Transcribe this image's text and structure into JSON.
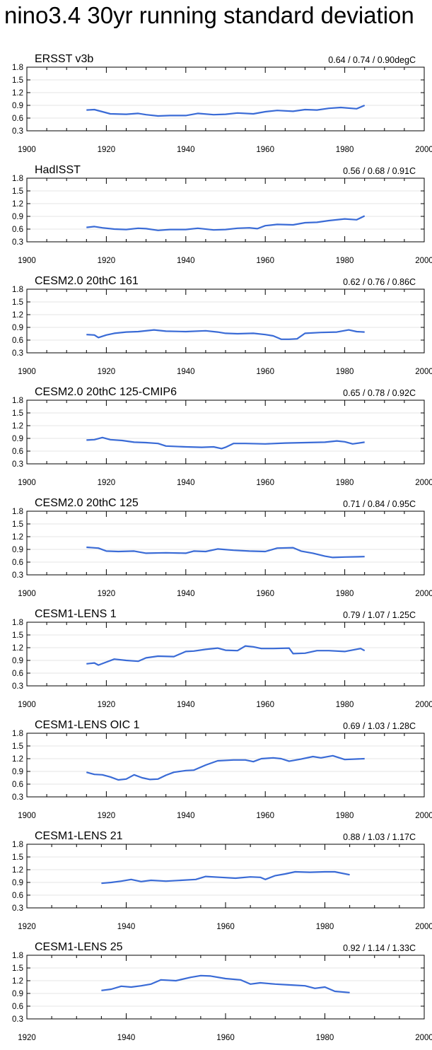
{
  "title": "nino3.4 30yr running standard deviation",
  "colors": {
    "series": "#3a6bd6",
    "grid": "#dcdcdc",
    "axis": "#000000"
  },
  "chart_data": [
    {
      "type": "line",
      "title": "ERSST v3b",
      "range_label": "0.64 / 0.74 / 0.90degC",
      "xlim": [
        1900,
        2000
      ],
      "xticks": [
        1900,
        1920,
        1940,
        1960,
        1980,
        2000
      ],
      "ylim": [
        0.3,
        1.8
      ],
      "yticks": [
        "0.3",
        "0.6",
        "0.9",
        "1.2",
        "1.5",
        "1.8"
      ],
      "x": [
        1915,
        1917,
        1919,
        1921,
        1925,
        1928,
        1930,
        1933,
        1936,
        1940,
        1943,
        1947,
        1950,
        1953,
        1957,
        1960,
        1963,
        1967,
        1970,
        1973,
        1976,
        1979,
        1983,
        1985
      ],
      "y": [
        0.79,
        0.8,
        0.75,
        0.7,
        0.69,
        0.71,
        0.68,
        0.65,
        0.66,
        0.66,
        0.71,
        0.68,
        0.69,
        0.72,
        0.7,
        0.75,
        0.78,
        0.76,
        0.8,
        0.79,
        0.83,
        0.85,
        0.82,
        0.9
      ]
    },
    {
      "type": "line",
      "title": "HadISST",
      "range_label": "0.56 / 0.68 / 0.91C",
      "xlim": [
        1900,
        2000
      ],
      "xticks": [
        1900,
        1920,
        1940,
        1960,
        1980,
        2000
      ],
      "ylim": [
        0.3,
        1.8
      ],
      "yticks": [
        "0.3",
        "0.6",
        "0.9",
        "1.2",
        "1.5",
        "1.8"
      ],
      "x": [
        1915,
        1917,
        1919,
        1922,
        1925,
        1928,
        1930,
        1933,
        1936,
        1940,
        1943,
        1947,
        1950,
        1953,
        1956,
        1958,
        1960,
        1963,
        1967,
        1970,
        1973,
        1976,
        1980,
        1983,
        1985
      ],
      "y": [
        0.64,
        0.66,
        0.63,
        0.6,
        0.59,
        0.62,
        0.61,
        0.57,
        0.59,
        0.59,
        0.62,
        0.58,
        0.59,
        0.62,
        0.63,
        0.61,
        0.68,
        0.71,
        0.7,
        0.75,
        0.76,
        0.8,
        0.84,
        0.82,
        0.91
      ]
    },
    {
      "type": "line",
      "title": "CESM2.0 20thC 161",
      "range_label": "0.62 / 0.76 / 0.86C",
      "xlim": [
        1900,
        2000
      ],
      "xticks": [
        1900,
        1920,
        1940,
        1960,
        1980,
        2000
      ],
      "ylim": [
        0.3,
        1.8
      ],
      "yticks": [
        "0.3",
        "0.6",
        "0.9",
        "1.2",
        "1.5",
        "1.8"
      ],
      "x": [
        1915,
        1917,
        1918,
        1920,
        1922,
        1925,
        1928,
        1932,
        1935,
        1940,
        1945,
        1948,
        1950,
        1953,
        1957,
        1960,
        1962,
        1964,
        1966,
        1968,
        1970,
        1974,
        1978,
        1981,
        1983,
        1985
      ],
      "y": [
        0.73,
        0.72,
        0.66,
        0.72,
        0.76,
        0.79,
        0.8,
        0.84,
        0.81,
        0.8,
        0.82,
        0.79,
        0.76,
        0.75,
        0.76,
        0.73,
        0.7,
        0.62,
        0.62,
        0.63,
        0.76,
        0.78,
        0.79,
        0.84,
        0.8,
        0.79
      ]
    },
    {
      "type": "line",
      "title": "CESM2.0 20thC 125-CMIP6",
      "range_label": "0.65 / 0.78 / 0.92C",
      "xlim": [
        1900,
        2000
      ],
      "xticks": [
        1900,
        1920,
        1940,
        1960,
        1980,
        2000
      ],
      "ylim": [
        0.3,
        1.8
      ],
      "yticks": [
        "0.3",
        "0.6",
        "0.9",
        "1.2",
        "1.5",
        "1.8"
      ],
      "x": [
        1915,
        1917,
        1919,
        1921,
        1924,
        1927,
        1930,
        1933,
        1935,
        1940,
        1944,
        1947,
        1949,
        1950,
        1952,
        1955,
        1960,
        1965,
        1970,
        1975,
        1978,
        1980,
        1982,
        1985
      ],
      "y": [
        0.86,
        0.87,
        0.92,
        0.87,
        0.85,
        0.81,
        0.8,
        0.78,
        0.72,
        0.7,
        0.69,
        0.7,
        0.66,
        0.69,
        0.78,
        0.78,
        0.77,
        0.79,
        0.8,
        0.81,
        0.84,
        0.82,
        0.77,
        0.81
      ]
    },
    {
      "type": "line",
      "title": "CESM2.0 20thC 125",
      "range_label": "0.71 / 0.84 / 0.95C",
      "xlim": [
        1900,
        2000
      ],
      "xticks": [
        1900,
        1920,
        1940,
        1960,
        1980,
        2000
      ],
      "ylim": [
        0.3,
        1.8
      ],
      "yticks": [
        "0.3",
        "0.6",
        "0.9",
        "1.2",
        "1.5",
        "1.8"
      ],
      "x": [
        1915,
        1918,
        1920,
        1923,
        1927,
        1930,
        1935,
        1940,
        1942,
        1945,
        1948,
        1952,
        1956,
        1960,
        1963,
        1967,
        1969,
        1972,
        1975,
        1977,
        1980,
        1985
      ],
      "y": [
        0.95,
        0.93,
        0.86,
        0.85,
        0.86,
        0.81,
        0.82,
        0.81,
        0.86,
        0.85,
        0.91,
        0.88,
        0.86,
        0.85,
        0.93,
        0.94,
        0.86,
        0.81,
        0.74,
        0.71,
        0.72,
        0.73
      ]
    },
    {
      "type": "line",
      "title": "CESM1-LENS 1",
      "range_label": "0.79 / 1.07 / 1.25C",
      "xlim": [
        1900,
        2000
      ],
      "xticks": [
        1900,
        1920,
        1940,
        1960,
        1980,
        2000
      ],
      "ylim": [
        0.3,
        1.8
      ],
      "yticks": [
        "0.3",
        "0.6",
        "0.9",
        "1.2",
        "1.5",
        "1.8"
      ],
      "x": [
        1915,
        1917,
        1918,
        1920,
        1922,
        1925,
        1928,
        1930,
        1933,
        1937,
        1940,
        1942,
        1945,
        1948,
        1950,
        1953,
        1955,
        1957,
        1959,
        1962,
        1966,
        1967,
        1970,
        1973,
        1976,
        1980,
        1984,
        1985
      ],
      "y": [
        0.82,
        0.84,
        0.79,
        0.86,
        0.93,
        0.9,
        0.88,
        0.96,
        1.0,
        0.99,
        1.11,
        1.12,
        1.16,
        1.19,
        1.14,
        1.13,
        1.24,
        1.22,
        1.18,
        1.18,
        1.19,
        1.06,
        1.07,
        1.13,
        1.13,
        1.11,
        1.18,
        1.13
      ]
    },
    {
      "type": "line",
      "title": "CESM1-LENS OIC 1",
      "range_label": "0.69 / 1.03 / 1.28C",
      "xlim": [
        1900,
        2000
      ],
      "xticks": [
        1900,
        1920,
        1940,
        1960,
        1980,
        2000
      ],
      "ylim": [
        0.3,
        1.8
      ],
      "yticks": [
        "0.3",
        "0.6",
        "0.9",
        "1.2",
        "1.5",
        "1.8"
      ],
      "x": [
        1915,
        1917,
        1919,
        1921,
        1923,
        1925,
        1927,
        1929,
        1931,
        1933,
        1935,
        1937,
        1940,
        1942,
        1945,
        1948,
        1952,
        1955,
        1957,
        1959,
        1962,
        1964,
        1966,
        1969,
        1972,
        1974,
        1977,
        1980,
        1985
      ],
      "y": [
        0.88,
        0.83,
        0.82,
        0.77,
        0.7,
        0.72,
        0.82,
        0.75,
        0.71,
        0.72,
        0.81,
        0.88,
        0.92,
        0.93,
        1.05,
        1.15,
        1.17,
        1.17,
        1.13,
        1.2,
        1.22,
        1.2,
        1.14,
        1.19,
        1.25,
        1.22,
        1.27,
        1.18,
        1.2
      ]
    },
    {
      "type": "line",
      "title": "CESM1-LENS 21",
      "range_label": "0.88 / 1.03 / 1.17C",
      "xlim": [
        1920,
        2000
      ],
      "xticks": [
        1920,
        1940,
        1960,
        1980,
        2000
      ],
      "ylim": [
        0.3,
        1.8
      ],
      "yticks": [
        "0.3",
        "0.6",
        "0.9",
        "1.2",
        "1.5",
        "1.8"
      ],
      "x": [
        1935,
        1937,
        1939,
        1941,
        1943,
        1945,
        1948,
        1951,
        1954,
        1956,
        1959,
        1962,
        1965,
        1967,
        1968,
        1970,
        1972,
        1974,
        1977,
        1980,
        1982,
        1985
      ],
      "y": [
        0.88,
        0.9,
        0.93,
        0.97,
        0.92,
        0.95,
        0.93,
        0.95,
        0.97,
        1.04,
        1.02,
        1.0,
        1.03,
        1.02,
        0.97,
        1.06,
        1.1,
        1.15,
        1.14,
        1.15,
        1.15,
        1.08
      ]
    },
    {
      "type": "line",
      "title": "CESM1-LENS 25",
      "range_label": "0.92 / 1.14 / 1.33C",
      "xlim": [
        1920,
        2000
      ],
      "xticks": [
        1920,
        1940,
        1960,
        1980,
        2000
      ],
      "ylim": [
        0.3,
        1.8
      ],
      "yticks": [
        "0.3",
        "0.6",
        "0.9",
        "1.2",
        "1.5",
        "1.8"
      ],
      "x": [
        1935,
        1937,
        1939,
        1941,
        1943,
        1945,
        1947,
        1950,
        1953,
        1955,
        1957,
        1960,
        1963,
        1965,
        1967,
        1970,
        1973,
        1976,
        1978,
        1980,
        1982,
        1985
      ],
      "y": [
        0.97,
        1.0,
        1.07,
        1.05,
        1.08,
        1.12,
        1.22,
        1.2,
        1.28,
        1.32,
        1.31,
        1.25,
        1.22,
        1.12,
        1.15,
        1.12,
        1.1,
        1.08,
        1.02,
        1.05,
        0.95,
        0.92
      ]
    }
  ]
}
